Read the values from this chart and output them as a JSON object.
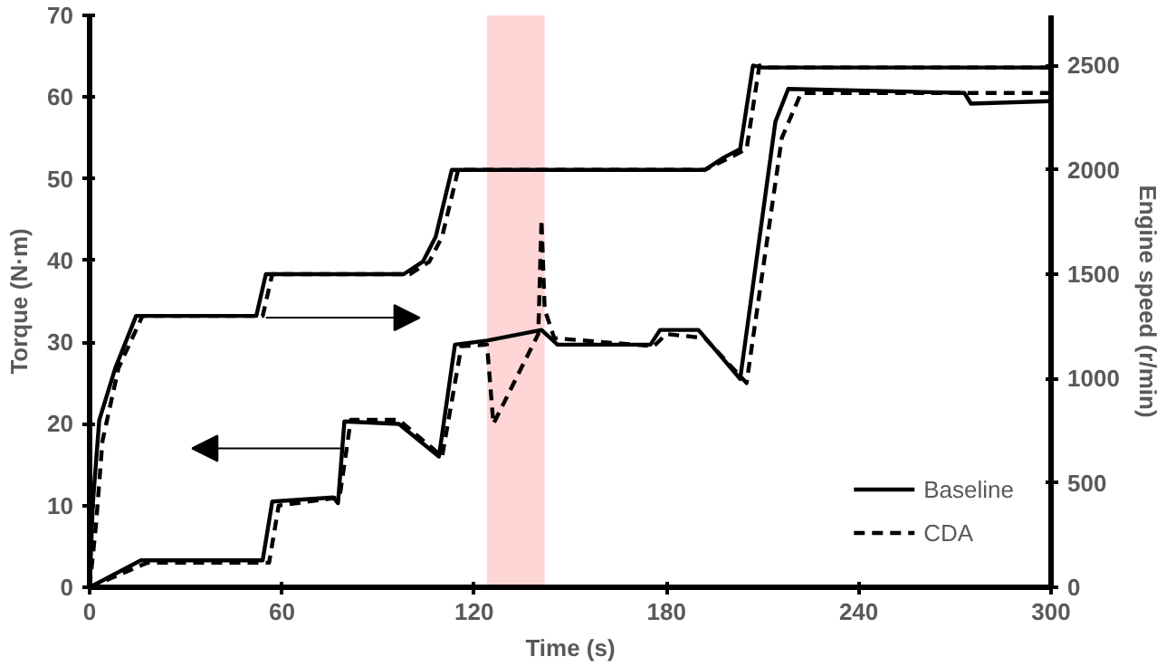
{
  "chart_data": {
    "type": "line",
    "xlabel": "Time (s)",
    "ylabel": "Torque (N·m)",
    "y2label": "Engine speed (r/min)",
    "xlim": [
      0,
      300
    ],
    "xticks": [
      0,
      60,
      120,
      180,
      240,
      300
    ],
    "ylim": [
      0,
      70
    ],
    "yticks": [
      0,
      10,
      20,
      30,
      40,
      50,
      60,
      70
    ],
    "y2lim": [
      0,
      2740
    ],
    "y2ticks": [
      0,
      500,
      1000,
      1500,
      2000,
      2500
    ],
    "grid": false,
    "legend": "bottom right",
    "marker": "none",
    "bands": [
      {
        "axis": "x",
        "from": 124,
        "to": 142,
        "color": "#ffd6d6"
      }
    ],
    "series": [
      {
        "name": "Baseline",
        "color": "#000000",
        "line_style": "solid",
        "x": [
          0,
          16,
          54,
          57,
          76,
          77.5,
          79.5,
          96.5,
          109,
          114,
          124,
          141,
          146,
          175,
          178,
          190,
          203,
          214,
          218,
          273,
          275,
          300
        ],
        "values": [
          0,
          3.3,
          3.3,
          10.5,
          11,
          10.3,
          20.3,
          20,
          16,
          29.7,
          30.2,
          31.5,
          29.7,
          29.7,
          31.5,
          31.5,
          25.5,
          57,
          61,
          60.5,
          59.2,
          59.5
        ]
      },
      {
        "name": "CDA",
        "color": "#000000",
        "line_style": "dashed",
        "x": [
          0,
          18,
          56,
          59,
          78,
          81.5,
          96.5,
          110,
          116,
          124,
          126,
          140,
          141,
          142,
          145,
          176,
          180,
          192,
          205,
          216,
          222,
          300
        ],
        "values": [
          0,
          3,
          3,
          10,
          11,
          20.5,
          20.5,
          16,
          29.5,
          29.7,
          20,
          31,
          45,
          34,
          30.5,
          29.5,
          31,
          30.5,
          25,
          55,
          60.5,
          60.5
        ]
      },
      {
        "color": "#000000",
        "line_style": "solid",
        "axis": "y2",
        "x": [
          0,
          1,
          3,
          8,
          14.5,
          52,
          55,
          98,
          104,
          108,
          113,
          150,
          192,
          198,
          203,
          207,
          210,
          300
        ],
        "values": [
          0,
          400,
          800,
          1050,
          1300,
          1300,
          1500,
          1500,
          1560,
          1680,
          2000,
          2000,
          2000,
          2060,
          2100,
          2500,
          2490,
          2490
        ]
      },
      {
        "color": "#000000",
        "line_style": "dashed",
        "axis": "y2",
        "x": [
          0,
          2,
          4,
          9,
          16.5,
          54,
          57,
          100,
          106,
          110,
          115,
          192,
          200,
          205,
          209,
          212,
          300
        ],
        "values": [
          0,
          300,
          700,
          1050,
          1300,
          1300,
          1500,
          1500,
          1560,
          1680,
          2000,
          2000,
          2060,
          2100,
          2500,
          2490,
          2490
        ]
      }
    ]
  }
}
